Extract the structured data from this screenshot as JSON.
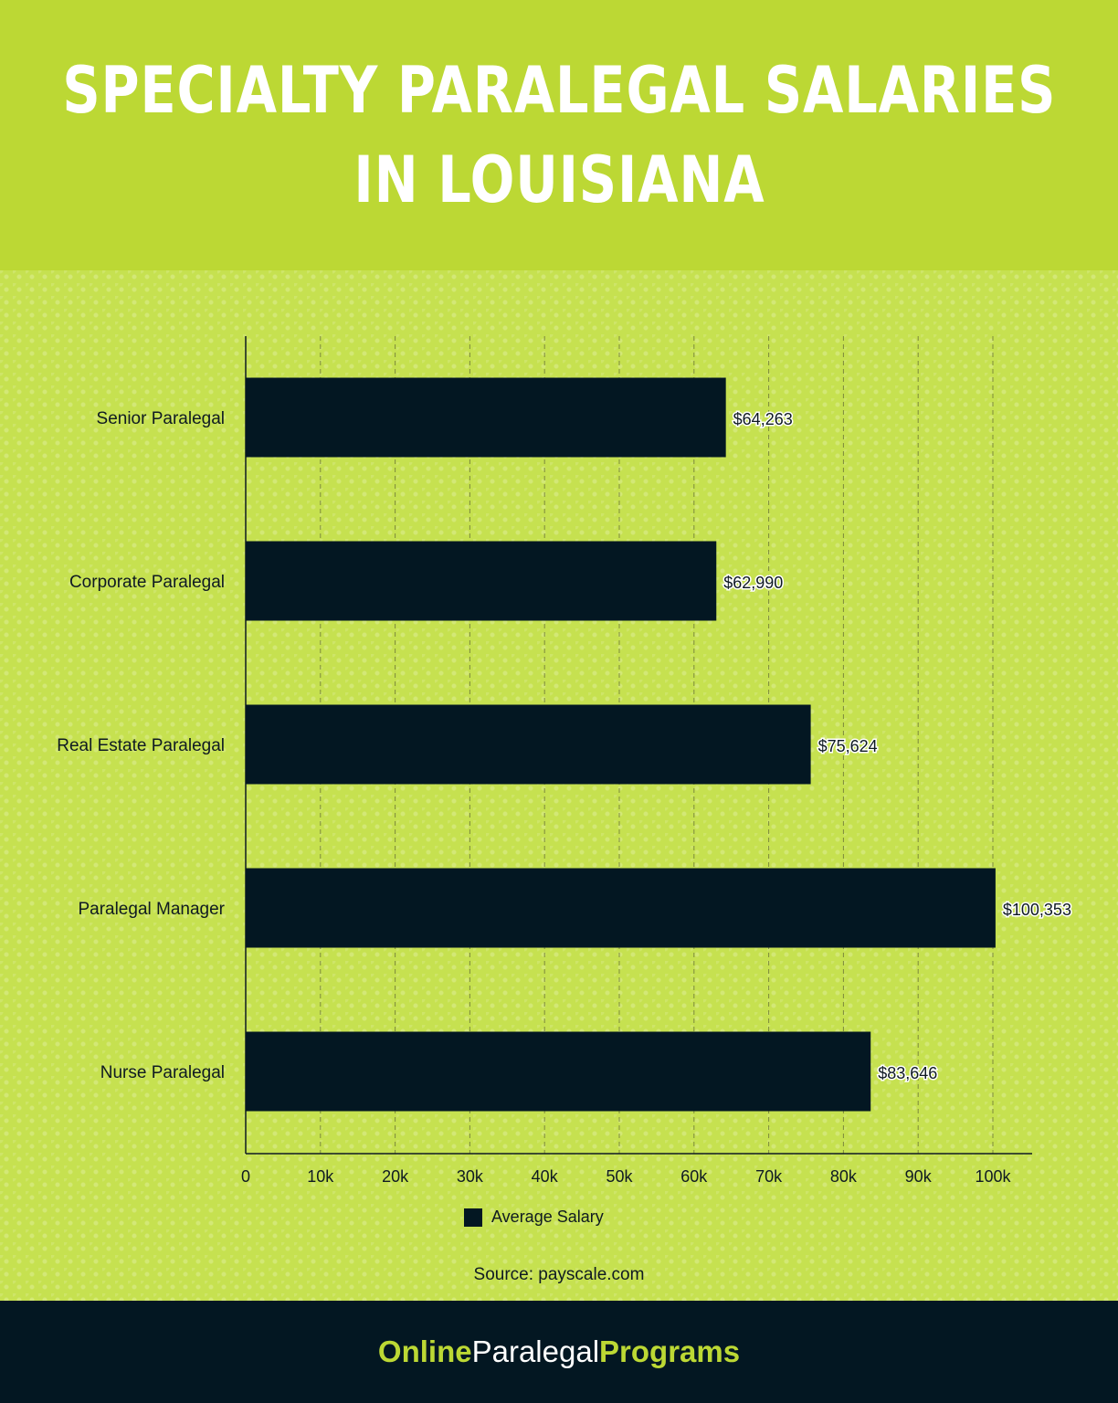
{
  "header": {
    "title_line1": "SPECIALTY PARALEGAL SALARIES",
    "title_line2": "IN  LOUISIANA"
  },
  "colors": {
    "brand_green": "#bcd834",
    "bar": "#031722",
    "footer_bg": "#031722"
  },
  "chart_data": {
    "type": "bar",
    "orientation": "horizontal",
    "categories": [
      "Senior Paralegal",
      "Corporate Paralegal",
      "Real Estate Paralegal",
      "Paralegal Manager",
      "Nurse Paralegal"
    ],
    "series": [
      {
        "name": "Average Salary",
        "values": [
          64263,
          62990,
          75624,
          100353,
          83646
        ]
      }
    ],
    "data_labels": [
      "$64,263",
      "$62,990",
      "$75,624",
      "$100,353",
      "$83,646"
    ],
    "xlim": [
      0,
      105000
    ],
    "x_ticks": [
      0,
      10000,
      20000,
      30000,
      40000,
      50000,
      60000,
      70000,
      80000,
      90000,
      100000
    ],
    "x_tick_labels": [
      "0",
      "10k",
      "20k",
      "30k",
      "40k",
      "50k",
      "60k",
      "70k",
      "80k",
      "90k",
      "100k"
    ],
    "grid": "vertical dashed",
    "legend": "bottom-center",
    "xlabel": "",
    "ylabel": ""
  },
  "legend": {
    "label": "Average Salary"
  },
  "source": "Source: payscale.com",
  "footer": {
    "brand_part1": "Online",
    "brand_part2": "Paralegal",
    "brand_part3": "Programs"
  }
}
